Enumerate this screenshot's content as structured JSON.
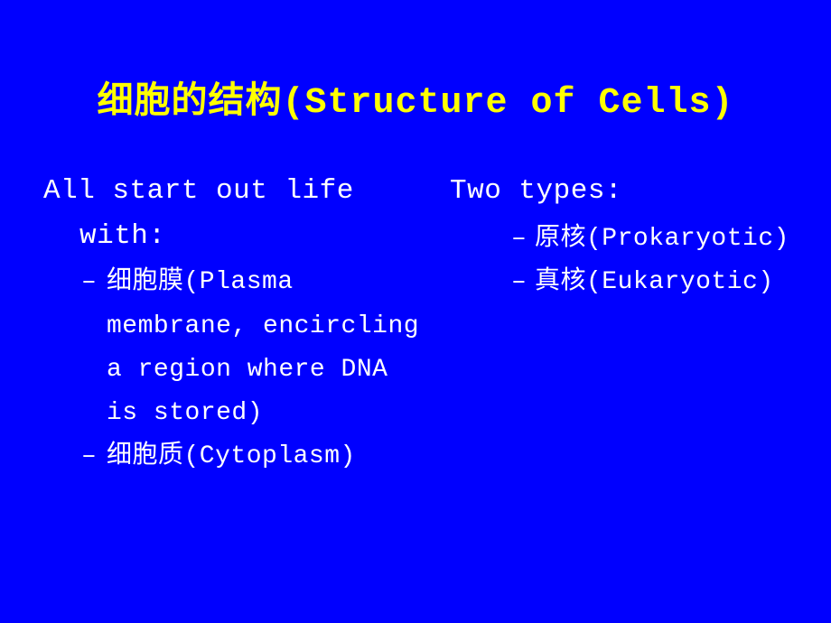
{
  "colors": {
    "background": "#0000ff",
    "title": "#ffff00",
    "body_text": "#ffffff"
  },
  "typography": {
    "title_fontsize": 40,
    "main_fontsize": 31,
    "sub_fontsize": 28
  },
  "title": "细胞的结构(Structure of Cells)",
  "left": {
    "heading_line1": "All start out life",
    "heading_line2": "with:",
    "items": [
      {
        "line1": "细胞膜(Plasma",
        "line2": "membrane, encircling",
        "line3": "a region where DNA",
        "line4": "is stored)"
      },
      {
        "line1": "细胞质(Cytoplasm)"
      }
    ]
  },
  "right": {
    "heading": "Two types:",
    "items": [
      {
        "label": "原核(Prokaryotic)"
      },
      {
        "label": "真核(Eukaryotic)"
      }
    ]
  }
}
